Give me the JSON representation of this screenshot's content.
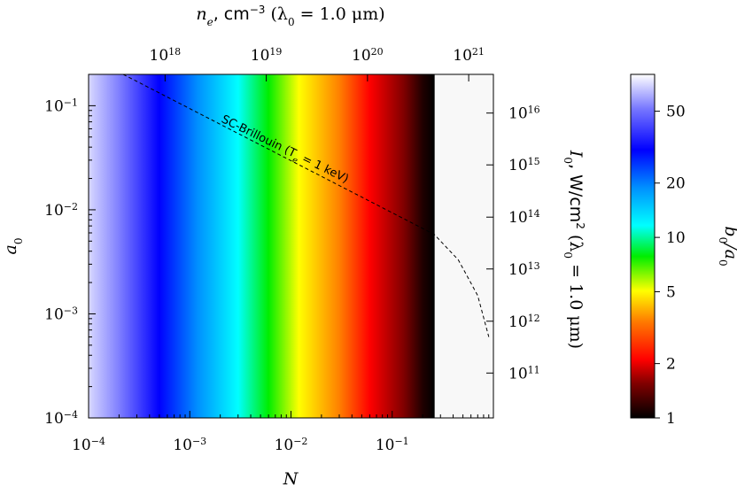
{
  "chart_data": {
    "type": "heatmap",
    "colormap": "b_0/a_0 rainbow (white→blue→cyan→green→yellow→red→black)",
    "x_axis": {
      "label": "N",
      "scale": "log",
      "range": [
        0.0001,
        1.0
      ],
      "ticks": [
        {
          "value": 0.0001,
          "base": "10",
          "exp": "−4"
        },
        {
          "value": 0.001,
          "base": "10",
          "exp": "−3"
        },
        {
          "value": 0.01,
          "base": "10",
          "exp": "−2"
        },
        {
          "value": 0.1,
          "base": "10",
          "exp": "−1"
        }
      ]
    },
    "y_axis": {
      "label": "a",
      "label_sub": "0",
      "scale": "log",
      "range": [
        0.0001,
        0.2
      ],
      "ticks": [
        {
          "value": 0.0001,
          "base": "10",
          "exp": "−4"
        },
        {
          "value": 0.001,
          "base": "10",
          "exp": "−3"
        },
        {
          "value": 0.01,
          "base": "10",
          "exp": "−2"
        },
        {
          "value": 0.1,
          "base": "10",
          "exp": "−1"
        }
      ]
    },
    "top_axis": {
      "label_n": "n",
      "label_n_sub": "e",
      "label_units": ", cm",
      "label_units_exp": "−3",
      "label_lambda": " (λ",
      "label_lambda_sub": "0",
      "label_lambda_eq": " = 1.0 μm)",
      "ticks": [
        {
          "value": 0.00057,
          "base": "10",
          "exp": "18"
        },
        {
          "value": 0.0057,
          "base": "10",
          "exp": "19"
        },
        {
          "value": 0.057,
          "base": "10",
          "exp": "20"
        },
        {
          "value": 0.57,
          "base": "10",
          "exp": "21"
        }
      ]
    },
    "right_axis": {
      "label_I": "I",
      "label_I_sub": "0",
      "label_units": ", W/cm",
      "label_units_exp": "2",
      "label_lambda": " (λ",
      "label_lambda_sub": "0",
      "label_lambda_eq": " = 1.0 μm)",
      "ticks": [
        {
          "value": 0.00027,
          "base": "10",
          "exp": "11"
        },
        {
          "value": 0.00085,
          "base": "10",
          "exp": "12"
        },
        {
          "value": 0.0027,
          "base": "10",
          "exp": "13"
        },
        {
          "value": 0.0085,
          "base": "10",
          "exp": "14"
        },
        {
          "value": 0.027,
          "base": "10",
          "exp": "15"
        },
        {
          "value": 0.085,
          "base": "10",
          "exp": "16"
        }
      ]
    },
    "colorbar": {
      "label_b": "b",
      "label_b_sub": "0",
      "label_a": "/a",
      "label_a_sub": "0",
      "scale": "log",
      "range": [
        1,
        80
      ],
      "ticks": [
        {
          "value": 1,
          "label": "1"
        },
        {
          "value": 2,
          "label": "2"
        },
        {
          "value": 5,
          "label": "5"
        },
        {
          "value": 10,
          "label": "10"
        },
        {
          "value": 20,
          "label": "20"
        },
        {
          "value": 50,
          "label": "50"
        }
      ],
      "colors": [
        {
          "t": 0.0,
          "color": "#000000"
        },
        {
          "t": 0.1,
          "color": "#800000"
        },
        {
          "t": 0.17,
          "color": "#ff0000"
        },
        {
          "t": 0.28,
          "color": "#ff7a00"
        },
        {
          "t": 0.37,
          "color": "#ffff00"
        },
        {
          "t": 0.47,
          "color": "#00ee00"
        },
        {
          "t": 0.56,
          "color": "#00ffff"
        },
        {
          "t": 0.67,
          "color": "#0090ff"
        },
        {
          "t": 0.78,
          "color": "#0000ff"
        },
        {
          "t": 0.9,
          "color": "#7777ff"
        },
        {
          "t": 1.0,
          "color": "#ffffff"
        }
      ]
    },
    "field": {
      "x_cutoff": 0.26,
      "color_vs_x": [
        {
          "x": 0.0001,
          "color": "#d8d8ff"
        },
        {
          "x": 0.0002,
          "color": "#7f7fff"
        },
        {
          "x": 0.0005,
          "color": "#0000ff"
        },
        {
          "x": 0.0012,
          "color": "#0090ff"
        },
        {
          "x": 0.003,
          "color": "#00ffff"
        },
        {
          "x": 0.006,
          "color": "#00ee00"
        },
        {
          "x": 0.012,
          "color": "#ffff00"
        },
        {
          "x": 0.03,
          "color": "#ff8000"
        },
        {
          "x": 0.06,
          "color": "#ff0000"
        },
        {
          "x": 0.13,
          "color": "#800000"
        },
        {
          "x": 0.2,
          "color": "#200000"
        },
        {
          "x": 0.26,
          "color": "#000000"
        }
      ],
      "region_beyond_cutoff_color": "#f8f8f8"
    },
    "series": [
      {
        "name": "SC-Brillouin (T",
        "name_sub": "e",
        "name_tail": " = 1 keV)",
        "style": "dashed",
        "points": [
          {
            "x": 0.00022,
            "y": 0.2
          },
          {
            "x": 0.26,
            "y": 0.0058
          },
          {
            "x": 0.45,
            "y": 0.0033
          },
          {
            "x": 0.7,
            "y": 0.0015
          },
          {
            "x": 0.9,
            "y": 0.0006
          }
        ]
      }
    ]
  }
}
